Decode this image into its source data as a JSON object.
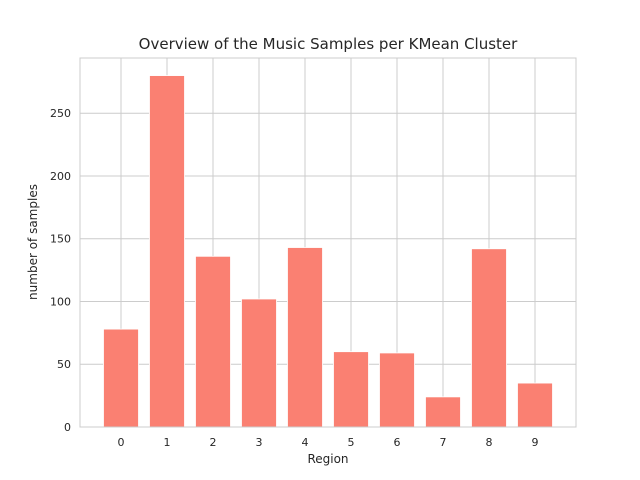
{
  "chart_data": {
    "type": "bar",
    "title": "Overview of the Music Samples per KMean Cluster",
    "xlabel": "Region",
    "ylabel": "number of samples",
    "categories": [
      "0",
      "1",
      "2",
      "3",
      "4",
      "5",
      "6",
      "7",
      "8",
      "9"
    ],
    "values": [
      78,
      280,
      136,
      102,
      143,
      60,
      59,
      24,
      142,
      35
    ],
    "ylim": [
      0,
      294
    ],
    "yticks": [
      0,
      50,
      100,
      150,
      200,
      250
    ],
    "grid": true,
    "bar_color": "#fa8072",
    "grid_color": "#cccccc"
  }
}
